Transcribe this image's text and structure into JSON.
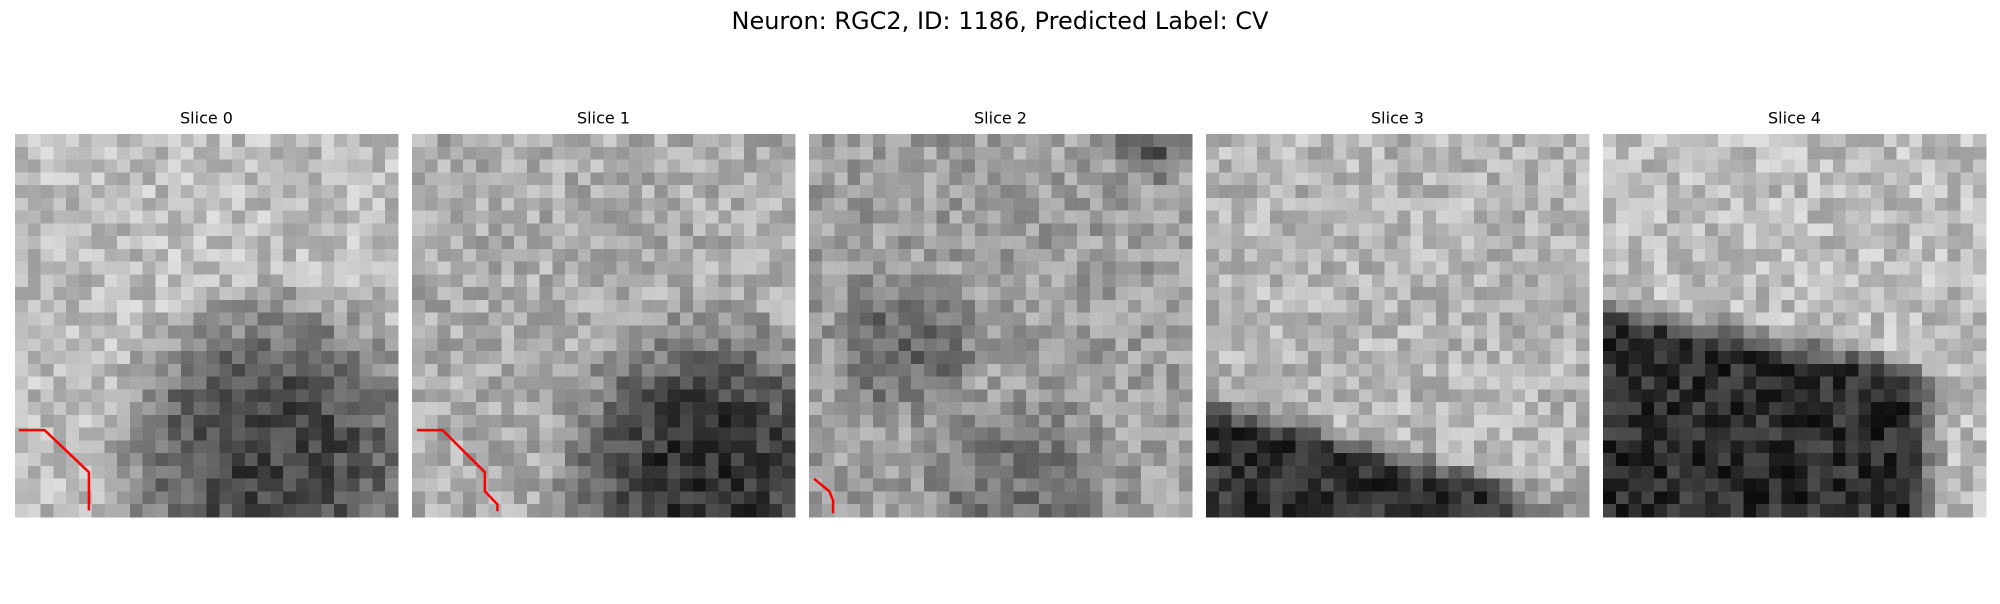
{
  "title": "Neuron: RGC2, ID: 1186, Predicted Label: CV",
  "panels": [
    {
      "label": "Slice 0"
    },
    {
      "label": "Slice 1"
    },
    {
      "label": "Slice 2"
    },
    {
      "label": "Slice 3"
    },
    {
      "label": "Slice 4"
    }
  ]
}
